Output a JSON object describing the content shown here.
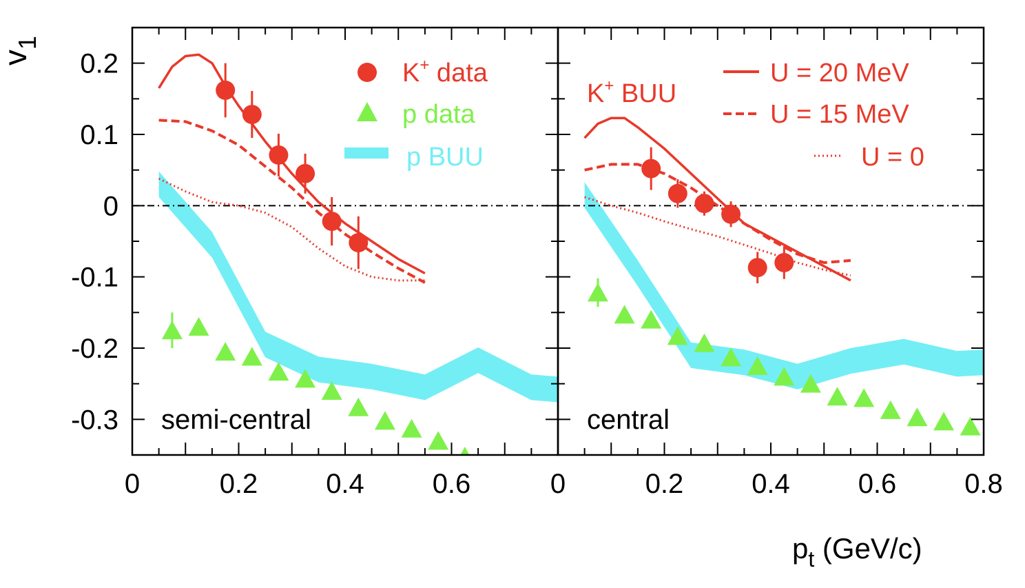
{
  "colors": {
    "kaon": "#e8392b",
    "proton_data": "#7ff04a",
    "proton_buu": "#73eef5",
    "axis": "#000000"
  },
  "axes": {
    "ylabel": "v",
    "ylabel_sub": "1",
    "xlabel": "p",
    "xlabel_sub": "t",
    "xlabel_unit": " (GeV/c)",
    "ylim": [
      -0.35,
      0.25
    ],
    "yticks": [
      -0.3,
      -0.2,
      -0.1,
      0,
      0.1,
      0.2
    ],
    "ytick_labels": [
      "-0.3",
      "-0.2",
      "-0.1",
      "0",
      "0.1",
      "0.2"
    ],
    "left_xticks": [
      0,
      0.2,
      0.4,
      0.6
    ],
    "left_xtick_labels": [
      "0",
      "0.2",
      "0.4",
      "0.6"
    ],
    "right_xticks": [
      0,
      0.2,
      0.4,
      0.6,
      0.8
    ],
    "right_xtick_labels": [
      "0",
      "0.2",
      "0.4",
      "0.6",
      "0.8"
    ],
    "xlim": [
      0,
      0.8
    ]
  },
  "legend_left": {
    "kaon_data": "K",
    "kaon_sup": "+",
    "kaon_data_rest": " data",
    "p_data": "p data",
    "p_buu": "p BUU"
  },
  "legend_right": {
    "title": "K",
    "title_sup": "+",
    "title_rest": " BUU",
    "u20": "U = 20 MeV",
    "u15": "U = 15 MeV",
    "u0": "U = 0"
  },
  "chart_data": [
    {
      "type": "scatter",
      "panel": "semi-central",
      "label": "semi-central",
      "series": [
        {
          "name": "K+ data",
          "marker": "circle",
          "x": [
            0.175,
            0.225,
            0.275,
            0.325,
            0.375,
            0.425
          ],
          "y": [
            0.162,
            0.128,
            0.071,
            0.045,
            -0.022,
            -0.052
          ],
          "err": [
            0.038,
            0.033,
            0.03,
            0.028,
            0.034,
            0.037
          ]
        },
        {
          "name": "p data",
          "marker": "triangle",
          "x": [
            0.075,
            0.125,
            0.175,
            0.225,
            0.275,
            0.325,
            0.375,
            0.425,
            0.475,
            0.525,
            0.575,
            0.625
          ],
          "y": [
            -0.175,
            -0.17,
            -0.205,
            -0.212,
            -0.233,
            -0.243,
            -0.26,
            -0.283,
            -0.302,
            -0.313,
            -0.33,
            -0.352
          ],
          "err": [
            0.025,
            0,
            0,
            0,
            0,
            0,
            0,
            0,
            0,
            0,
            0,
            0
          ]
        },
        {
          "name": "U = 20 MeV",
          "line": "solid",
          "x": [
            0.05,
            0.075,
            0.1,
            0.125,
            0.15,
            0.175,
            0.2,
            0.25,
            0.3,
            0.35,
            0.4,
            0.45,
            0.5,
            0.55
          ],
          "y": [
            0.165,
            0.195,
            0.21,
            0.212,
            0.2,
            0.168,
            0.14,
            0.09,
            0.045,
            0.005,
            -0.025,
            -0.05,
            -0.075,
            -0.095
          ]
        },
        {
          "name": "U = 15 MeV",
          "line": "dashed",
          "x": [
            0.05,
            0.1,
            0.15,
            0.2,
            0.25,
            0.3,
            0.35,
            0.4,
            0.45,
            0.5,
            0.55
          ],
          "y": [
            0.12,
            0.118,
            0.105,
            0.085,
            0.055,
            0.025,
            -0.01,
            -0.04,
            -0.065,
            -0.088,
            -0.108
          ]
        },
        {
          "name": "U = 0",
          "line": "dotted",
          "x": [
            0.05,
            0.1,
            0.15,
            0.2,
            0.25,
            0.3,
            0.35,
            0.4,
            0.45,
            0.5,
            0.55
          ],
          "y": [
            0.038,
            0.02,
            0.005,
            0.0,
            -0.01,
            -0.03,
            -0.06,
            -0.085,
            -0.1,
            -0.105,
            -0.105
          ]
        },
        {
          "name": "p BUU",
          "band": true,
          "x": [
            0.05,
            0.15,
            0.25,
            0.35,
            0.45,
            0.55,
            0.65,
            0.75,
            0.8
          ],
          "y": [
            0.03,
            -0.055,
            -0.195,
            -0.23,
            -0.24,
            -0.255,
            -0.217,
            -0.255,
            -0.258
          ],
          "width": 0.018
        }
      ]
    },
    {
      "type": "scatter",
      "panel": "central",
      "label": "central",
      "series": [
        {
          "name": "K+ data",
          "marker": "circle",
          "x": [
            0.175,
            0.225,
            0.275,
            0.325,
            0.375,
            0.425
          ],
          "y": [
            0.052,
            0.017,
            0.003,
            -0.012,
            -0.087,
            -0.08
          ],
          "err": [
            0.03,
            0.02,
            0.017,
            0.018,
            0.022,
            0.023
          ]
        },
        {
          "name": "p data",
          "marker": "triangle",
          "x": [
            0.075,
            0.125,
            0.175,
            0.225,
            0.275,
            0.325,
            0.375,
            0.425,
            0.475,
            0.525,
            0.575,
            0.625,
            0.675,
            0.725,
            0.775
          ],
          "y": [
            -0.122,
            -0.153,
            -0.16,
            -0.183,
            -0.193,
            -0.213,
            -0.225,
            -0.24,
            -0.25,
            -0.268,
            -0.27,
            -0.287,
            -0.297,
            -0.303,
            -0.31
          ],
          "err": [
            0.02,
            0,
            0,
            0,
            0,
            0,
            0,
            0,
            0,
            0,
            0,
            0,
            0,
            0,
            0
          ]
        },
        {
          "name": "U = 20 MeV",
          "line": "solid",
          "x": [
            0.05,
            0.075,
            0.1,
            0.125,
            0.15,
            0.2,
            0.25,
            0.3,
            0.35,
            0.4,
            0.45,
            0.5,
            0.55
          ],
          "y": [
            0.095,
            0.115,
            0.123,
            0.123,
            0.11,
            0.08,
            0.045,
            0.01,
            -0.025,
            -0.045,
            -0.065,
            -0.085,
            -0.105
          ]
        },
        {
          "name": "U = 15 MeV",
          "line": "dashed",
          "x": [
            0.05,
            0.1,
            0.15,
            0.2,
            0.25,
            0.3,
            0.35,
            0.4,
            0.45,
            0.5,
            0.55
          ],
          "y": [
            0.05,
            0.058,
            0.058,
            0.045,
            0.025,
            0.0,
            -0.025,
            -0.048,
            -0.068,
            -0.08,
            -0.077
          ]
        },
        {
          "name": "U = 0",
          "line": "dotted",
          "x": [
            0.05,
            0.1,
            0.15,
            0.2,
            0.25,
            0.3,
            0.35,
            0.4,
            0.45,
            0.5,
            0.55
          ],
          "y": [
            0.012,
            0.0,
            -0.01,
            -0.022,
            -0.033,
            -0.043,
            -0.055,
            -0.067,
            -0.08,
            -0.09,
            -0.098
          ]
        },
        {
          "name": "p BUU",
          "band": true,
          "x": [
            0.05,
            0.15,
            0.25,
            0.35,
            0.45,
            0.55,
            0.65,
            0.75,
            0.8
          ],
          "y": [
            0.015,
            -0.095,
            -0.21,
            -0.22,
            -0.24,
            -0.218,
            -0.205,
            -0.222,
            -0.22
          ],
          "width": 0.018
        }
      ]
    }
  ]
}
